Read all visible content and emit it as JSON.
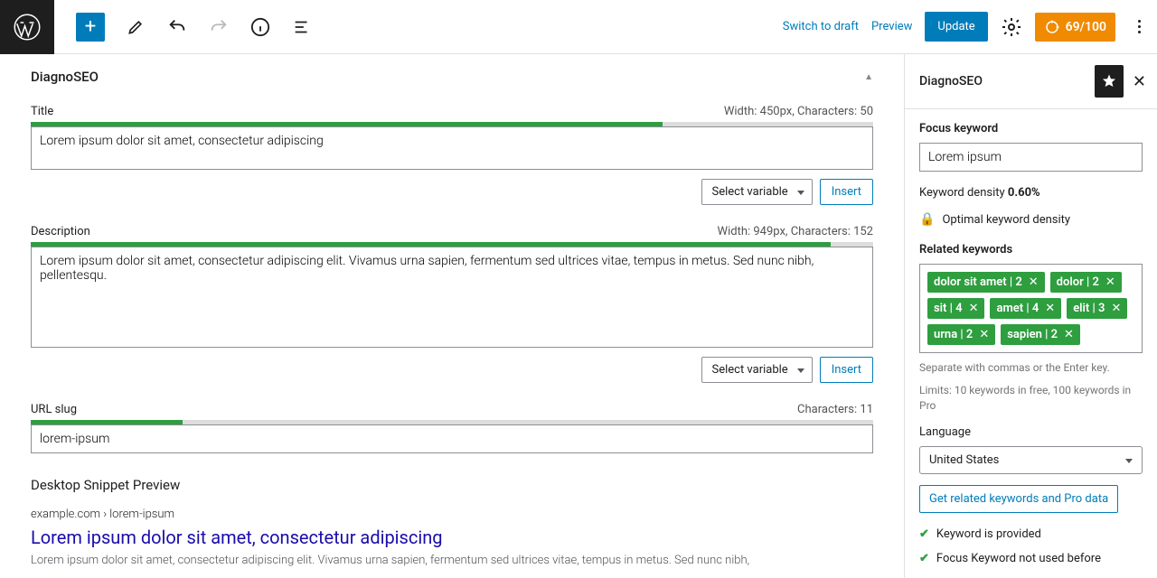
{
  "topbar": {
    "add_label": "+",
    "switch_draft": "Switch to draft",
    "preview": "Preview",
    "update": "Update",
    "score": "69/100",
    "score_bg": "#f08a00"
  },
  "panel": {
    "title": "DiagnoSEO",
    "fields": {
      "title": {
        "label": "Title",
        "meta": "Width: 450px, Characters: 50",
        "progress_pct": 75,
        "progress_color": "#2e9e3f",
        "value": "Lorem ipsum dolor sit amet, consectetur adipiscing"
      },
      "description": {
        "label": "Description",
        "meta": "Width: 949px, Characters: 152",
        "progress_pct": 95,
        "progress_color": "#2e9e3f",
        "value": "Lorem ipsum dolor sit amet, consectetur adipiscing elit. Vivamus urna sapien, fermentum sed ultrices vitae, tempus in metus. Sed nunc nibh, pellentesqu."
      },
      "slug": {
        "label": "URL slug",
        "meta": "Characters: 11",
        "progress_pct": 18,
        "progress_color": "#2e9e3f",
        "value": "lorem-ipsum"
      }
    },
    "select_variable": "Select variable",
    "insert": "Insert",
    "snippet_heading": "Desktop Snippet Preview",
    "snippet": {
      "url": "example.com › lorem-ipsum",
      "title": "Lorem ipsum dolor sit amet, consectetur adipiscing",
      "desc": "Lorem ipsum dolor sit amet, consectetur adipiscing elit. Vivamus urna sapien, fermentum sed ultrices vitae, tempus in metus. Sed nunc nibh,"
    }
  },
  "sidebar": {
    "title": "DiagnoSEO",
    "focus_label": "Focus keyword",
    "focus_value": "Lorem ipsum",
    "density_label": "Keyword density ",
    "density_value": "0.60%",
    "optimal": "Optimal keyword density",
    "related_label": "Related keywords",
    "tags": [
      "dolor sit amet | 2",
      "dolor | 2",
      "sit | 4",
      "amet | 4",
      "elit | 3",
      "urna | 2",
      "sapien | 2"
    ],
    "tag_hint": "Separate with commas or the Enter key.",
    "limits_hint": "Limits: 10 keywords in free, 100 keywords in Pro",
    "language_label": "Language",
    "language_value": "United States",
    "pro_button": "Get related keywords and Pro data",
    "checks": [
      "Keyword is provided",
      "Focus Keyword not used before"
    ]
  }
}
